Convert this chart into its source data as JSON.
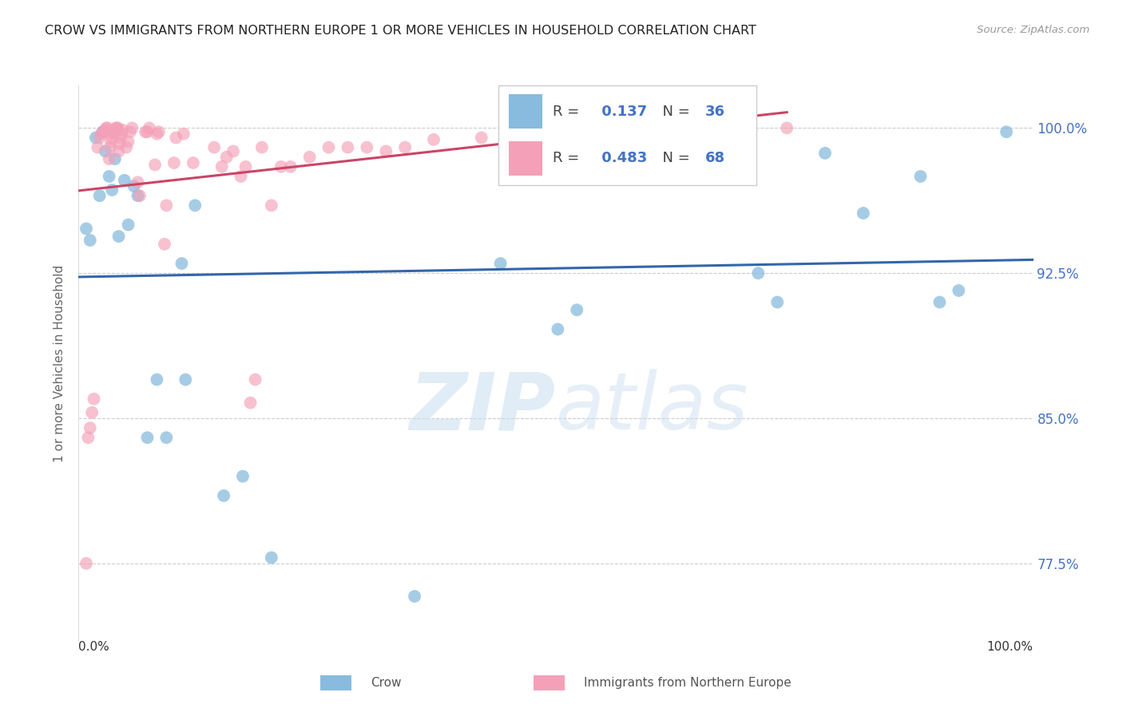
{
  "title": "CROW VS IMMIGRANTS FROM NORTHERN EUROPE 1 OR MORE VEHICLES IN HOUSEHOLD CORRELATION CHART",
  "source": "Source: ZipAtlas.com",
  "ylabel": "1 or more Vehicles in Household",
  "legend_label1": "Crow",
  "legend_label2": "Immigrants from Northern Europe",
  "R1": 0.137,
  "N1": 36,
  "R2": 0.483,
  "N2": 68,
  "watermark_zip": "ZIP",
  "watermark_atlas": "atlas",
  "ytick_labels": [
    "77.5%",
    "85.0%",
    "92.5%",
    "100.0%"
  ],
  "ytick_values": [
    0.775,
    0.85,
    0.925,
    1.0
  ],
  "xlim": [
    0.0,
    1.0
  ],
  "ylim": [
    0.735,
    1.022
  ],
  "blue_color": "#88bbdd",
  "pink_color": "#f4a0b8",
  "blue_line_color": "#3366aa",
  "pink_line_color": "#cc4466",
  "blue_scatter_x": [
    0.008,
    0.012,
    0.018,
    0.022,
    0.025,
    0.028,
    0.032,
    0.035,
    0.038,
    0.042,
    0.048,
    0.052,
    0.058,
    0.062,
    0.072,
    0.082,
    0.092,
    0.108,
    0.112,
    0.122,
    0.152,
    0.172,
    0.202,
    0.352,
    0.442,
    0.502,
    0.522,
    0.622,
    0.712,
    0.732,
    0.782,
    0.822,
    0.882,
    0.902,
    0.922,
    0.972
  ],
  "blue_scatter_y": [
    0.948,
    0.942,
    0.995,
    0.965,
    0.998,
    0.988,
    0.975,
    0.968,
    0.984,
    0.944,
    0.973,
    0.95,
    0.97,
    0.965,
    0.84,
    0.87,
    0.84,
    0.93,
    0.87,
    0.96,
    0.81,
    0.82,
    0.778,
    0.758,
    0.93,
    0.896,
    0.906,
    0.975,
    0.925,
    0.91,
    0.987,
    0.956,
    0.975,
    0.91,
    0.916,
    0.998
  ],
  "pink_scatter_x": [
    0.008,
    0.01,
    0.012,
    0.014,
    0.016,
    0.02,
    0.022,
    0.024,
    0.026,
    0.028,
    0.029,
    0.03,
    0.032,
    0.033,
    0.034,
    0.035,
    0.036,
    0.037,
    0.038,
    0.039,
    0.04,
    0.041,
    0.042,
    0.043,
    0.044,
    0.045,
    0.046,
    0.05,
    0.052,
    0.054,
    0.056,
    0.062,
    0.064,
    0.07,
    0.072,
    0.074,
    0.08,
    0.082,
    0.084,
    0.09,
    0.092,
    0.1,
    0.102,
    0.11,
    0.12,
    0.142,
    0.15,
    0.155,
    0.162,
    0.17,
    0.175,
    0.18,
    0.185,
    0.192,
    0.202,
    0.212,
    0.222,
    0.242,
    0.262,
    0.282,
    0.302,
    0.322,
    0.342,
    0.372,
    0.422,
    0.502,
    0.622,
    0.742
  ],
  "pink_scatter_y": [
    0.775,
    0.84,
    0.845,
    0.853,
    0.86,
    0.99,
    0.995,
    0.997,
    0.998,
    0.999,
    1.0,
    1.0,
    0.984,
    0.99,
    0.993,
    0.995,
    0.997,
    0.998,
    0.999,
    1.0,
    1.0,
    1.0,
    0.988,
    0.992,
    0.995,
    0.997,
    0.999,
    0.99,
    0.993,
    0.998,
    1.0,
    0.972,
    0.965,
    0.998,
    0.998,
    1.0,
    0.981,
    0.997,
    0.998,
    0.94,
    0.96,
    0.982,
    0.995,
    0.997,
    0.982,
    0.99,
    0.98,
    0.985,
    0.988,
    0.975,
    0.98,
    0.858,
    0.87,
    0.99,
    0.96,
    0.98,
    0.98,
    0.985,
    0.99,
    0.99,
    0.99,
    0.988,
    0.99,
    0.994,
    0.995,
    0.997,
    0.998,
    1.0
  ]
}
